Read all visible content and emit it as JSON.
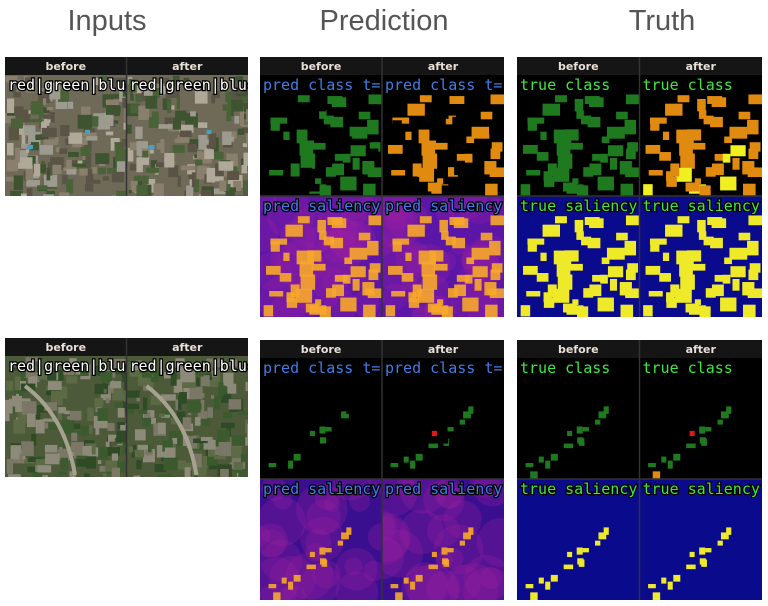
{
  "columns": [
    "Inputs",
    "Prediction",
    "Truth"
  ],
  "rows": [
    {
      "panels": [
        {
          "headers": [
            "before",
            "after"
          ],
          "tiles": [
            [
              "red|green|blue",
              "red|green|blue"
            ]
          ]
        },
        {
          "headers": [
            "before",
            "after"
          ],
          "tiles": [
            [
              "pred class t=(",
              "pred class t="
            ],
            [
              "pred saliency",
              "pred saliency"
            ]
          ]
        },
        {
          "headers": [
            "before",
            "after"
          ],
          "tiles": [
            [
              "true class",
              "true class"
            ],
            [
              "true saliency",
              "true saliency"
            ]
          ]
        }
      ]
    },
    {
      "panels": [
        {
          "headers": [
            "before",
            "after"
          ],
          "tiles": [
            [
              "red|green|blue",
              "red|green|blue"
            ]
          ]
        },
        {
          "headers": [
            "before",
            "after"
          ],
          "tiles": [
            [
              "pred class t=(",
              "pred class t="
            ],
            [
              "pred saliency",
              "pred saliency"
            ]
          ]
        },
        {
          "headers": [
            "before",
            "after"
          ],
          "tiles": [
            [
              "true class",
              "true class"
            ],
            [
              "true saliency",
              "true saliency"
            ]
          ]
        }
      ]
    }
  ]
}
